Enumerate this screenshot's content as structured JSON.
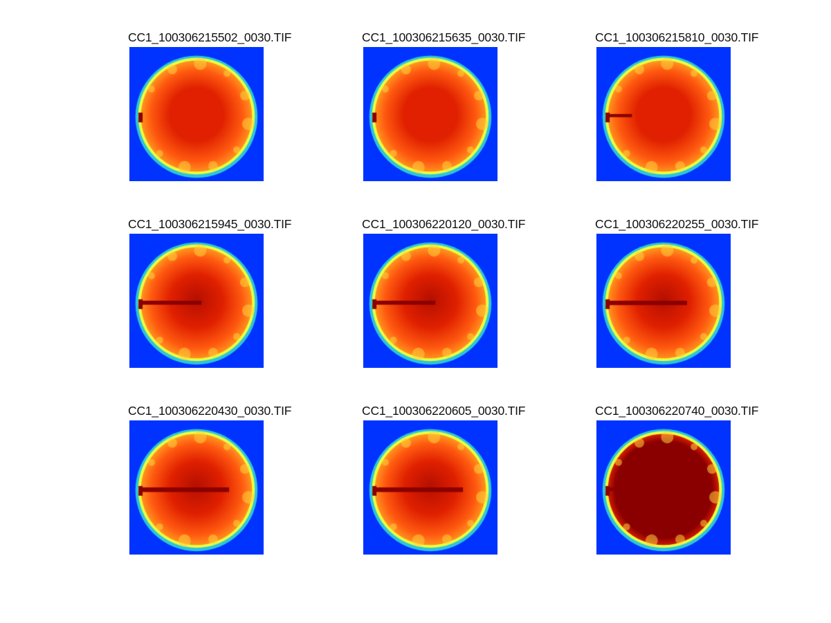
{
  "colors": {
    "background_field": "#0033ff",
    "ring_outer": "#2ec4d8",
    "ring_inner": "#e8ff40",
    "hot": "#ff5a10",
    "core": "#e02000",
    "saturated": "#8a0000"
  },
  "panels": [
    {
      "title": "CC1_100306215502_0030.TIF",
      "streak": 0.0,
      "saturation": 0.05
    },
    {
      "title": "CC1_100306215635_0030.TIF",
      "streak": 0.0,
      "saturation": 0.05
    },
    {
      "title": "CC1_100306215810_0030.TIF",
      "streak": 0.2,
      "saturation": 0.15
    },
    {
      "title": "CC1_100306215945_0030.TIF",
      "streak": 0.6,
      "saturation": 0.3
    },
    {
      "title": "CC1_100306220120_0030.TIF",
      "streak": 0.6,
      "saturation": 0.3
    },
    {
      "title": "CC1_100306220255_0030.TIF",
      "streak": 0.8,
      "saturation": 0.35
    },
    {
      "title": "CC1_100306220430_0030.TIF",
      "streak": 0.9,
      "saturation": 0.35
    },
    {
      "title": "CC1_100306220605_0030.TIF",
      "streak": 0.9,
      "saturation": 0.4
    },
    {
      "title": "CC1_100306220740_0030.TIF",
      "streak": 0.4,
      "saturation": 1.0
    }
  ]
}
